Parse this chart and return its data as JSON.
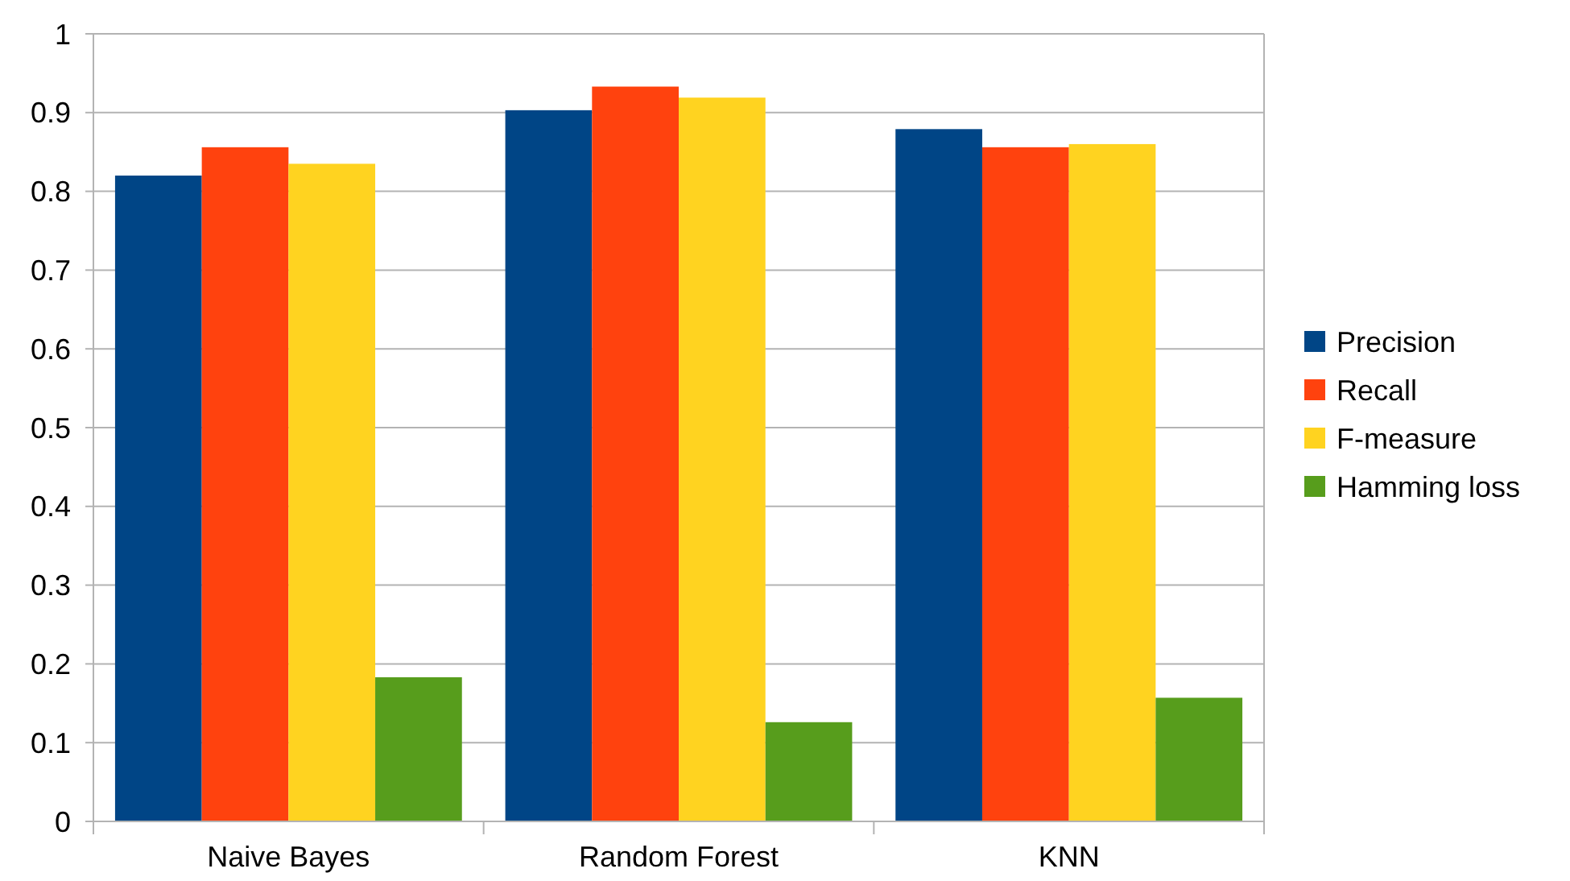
{
  "chart_data": {
    "type": "bar",
    "categories": [
      "Naive Bayes",
      "Random Forest",
      "KNN"
    ],
    "series": [
      {
        "name": "Precision",
        "color": "#004586",
        "values": [
          0.82,
          0.903,
          0.879
        ]
      },
      {
        "name": "Recall",
        "color": "#ff420e",
        "values": [
          0.856,
          0.933,
          0.856
        ]
      },
      {
        "name": "F-measure",
        "color": "#ffd320",
        "values": [
          0.835,
          0.919,
          0.86
        ]
      },
      {
        "name": "Hamming loss",
        "color": "#579d1c",
        "values": [
          0.183,
          0.126,
          0.157
        ]
      }
    ],
    "ylim": [
      0,
      1
    ],
    "yticks": [
      0,
      0.1,
      0.2,
      0.3,
      0.4,
      0.5,
      0.6,
      0.7,
      0.8,
      0.9,
      1
    ],
    "grid": "y",
    "legend": "right"
  }
}
